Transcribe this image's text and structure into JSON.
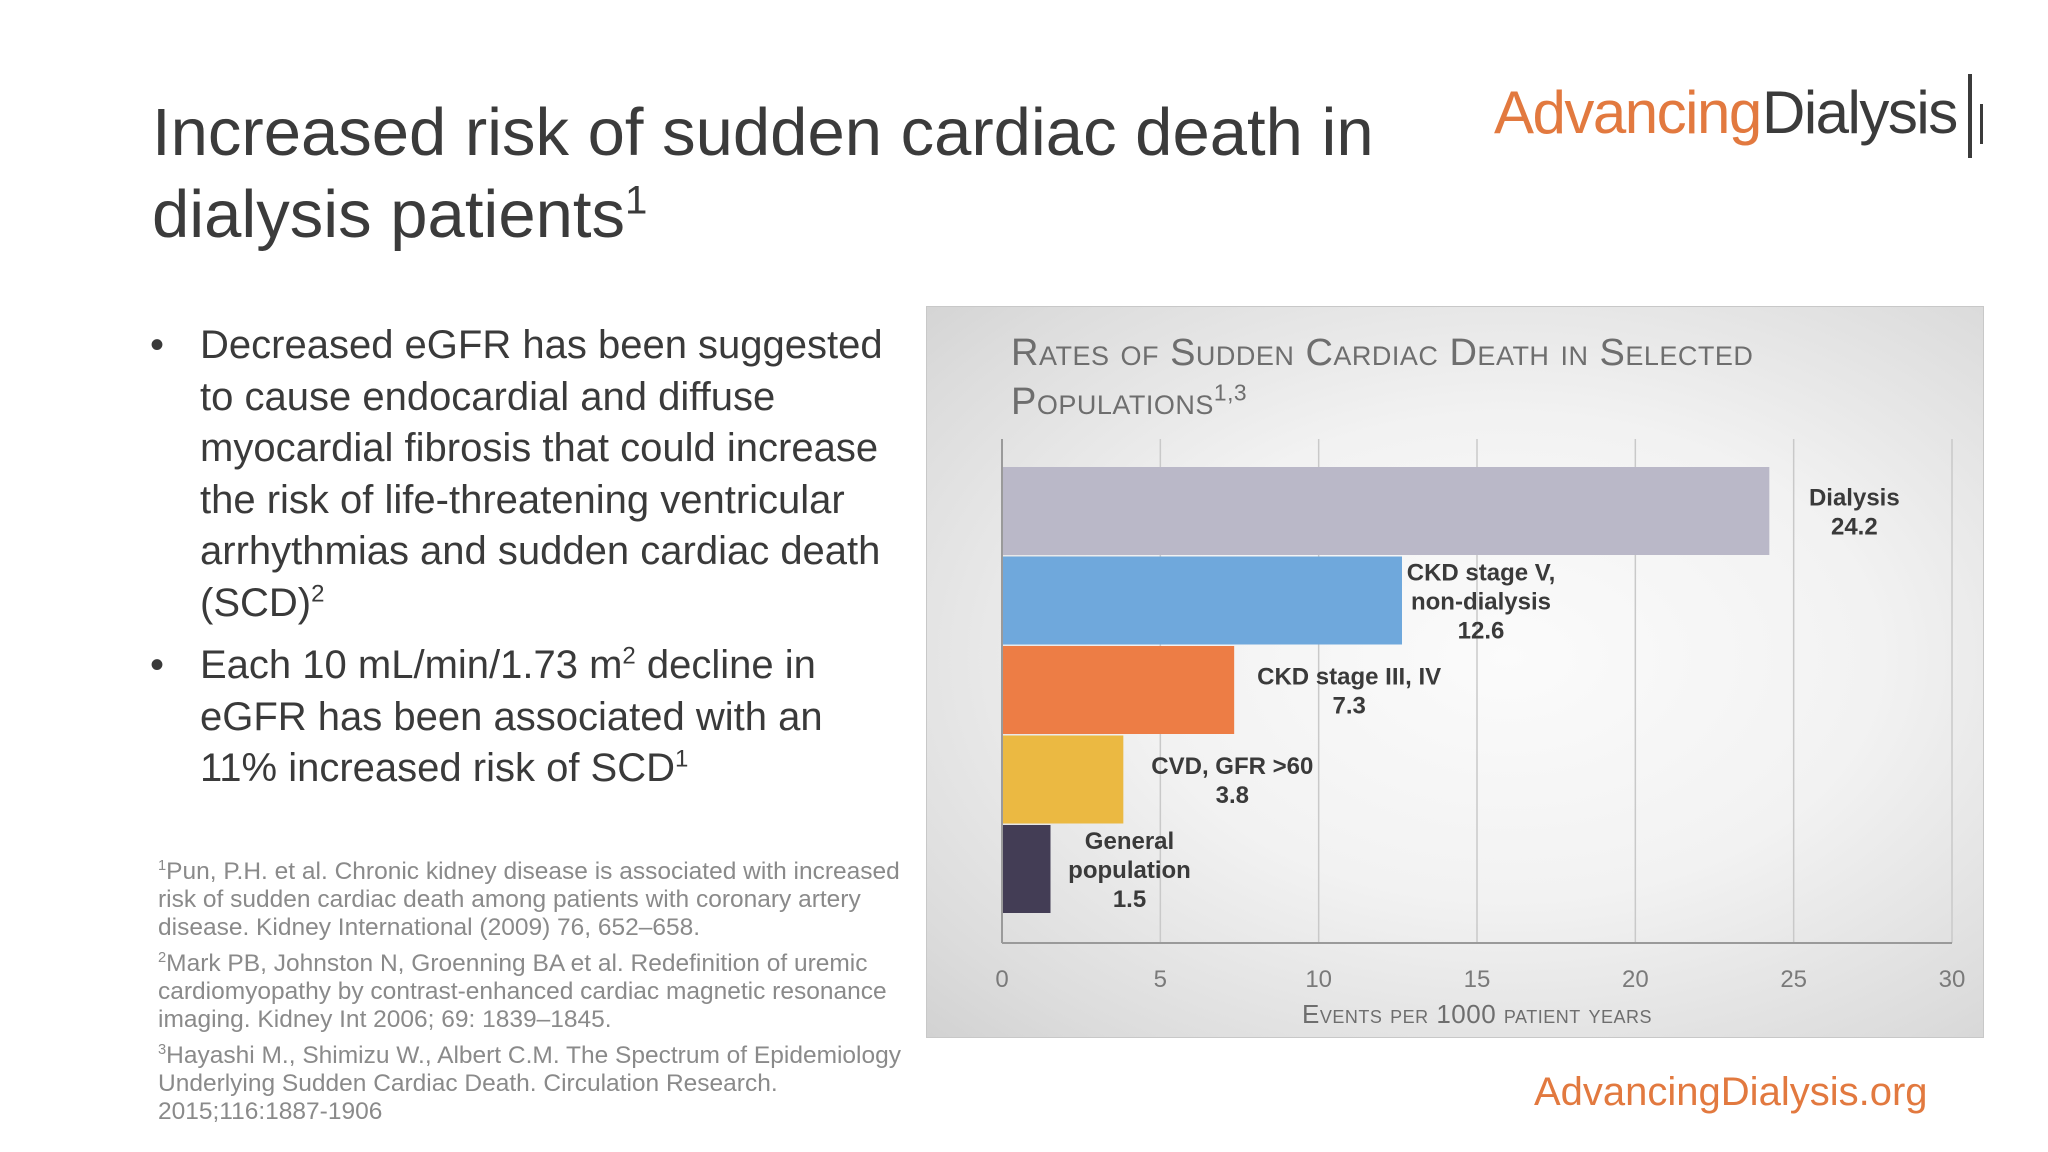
{
  "slide": {
    "title_text": "Increased risk of sudden cardiac death in dialysis patients",
    "title_sup": "1",
    "logo": {
      "advancing": "Advancing",
      "dialysis": "Dialysis"
    },
    "bullets": [
      {
        "text": "Decreased eGFR has been suggested to cause endocardial and diffuse myocardial fibrosis that could increase the risk of life-threatening ventricular arrhythmias and sudden cardiac death (SCD)",
        "sup": "2"
      },
      {
        "text_before": "Each 10 mL/min/1.73 m",
        "sup_mid": "2",
        "text_after": " decline in eGFR has been associated with an 11% increased risk of SCD",
        "sup": "1"
      }
    ],
    "bullet_char": "•",
    "references": [
      {
        "num": "1",
        "text": "Pun, P.H. et al. Chronic kidney disease is associated with increased risk of sudden cardiac death among patients with coronary artery disease. Kidney International (2009) 76, 652–658."
      },
      {
        "num": "2",
        "text": "Mark PB, Johnston N, Groenning BA et al. Redefinition of uremic cardiomyopathy by contrast-enhanced cardiac magnetic resonance imaging. Kidney Int 2006; 69: 1839–1845."
      },
      {
        "num": "3",
        "text": "Hayashi M., Shimizu W., Albert C.M. The Spectrum of Epidemiology Underlying Sudden Cardiac Death. Circulation Research. 2015;116:1887-1906"
      }
    ],
    "footer_url": "AdvancingDialysis.org",
    "colors": {
      "accent": "#e2793f"
    }
  },
  "chart_data": {
    "type": "bar",
    "orientation": "horizontal",
    "title": "Rates of Sudden Cardiac Death in Selected Populations",
    "title_sup": "1,3",
    "xlabel": "Events per 1000 patient years",
    "xlim": [
      0,
      30
    ],
    "xticks": [
      "0",
      "5",
      "10",
      "15",
      "20",
      "25",
      "30"
    ],
    "grid": true,
    "categories": [
      [
        "Dialysis"
      ],
      [
        "CKD stage V,",
        "non-dialysis"
      ],
      [
        "CKD stage III, IV"
      ],
      [
        "CVD, GFR >60"
      ],
      [
        "General",
        "population"
      ]
    ],
    "values": [
      24.2,
      12.6,
      7.3,
      3.8,
      1.5
    ],
    "value_labels": [
      "24.2",
      "12.6",
      "7.3",
      "3.8",
      "1.5"
    ],
    "colors": [
      "#bab8c8",
      "#6fa8dc",
      "#ed7d45",
      "#ebb942",
      "#433d55"
    ]
  }
}
